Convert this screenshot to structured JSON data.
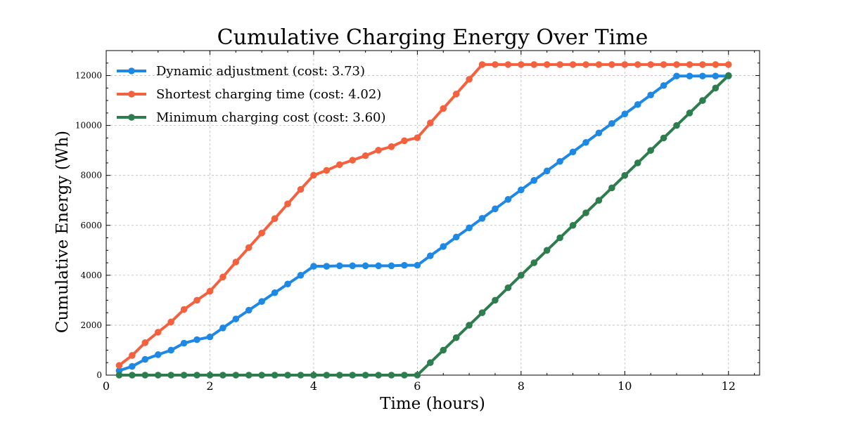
{
  "chart_data": {
    "type": "line",
    "title": "Cumulative Charging Energy Over Time",
    "xlabel": "Time (hours)",
    "ylabel": "Cumulative Energy (Wh)",
    "xlim": [
      0,
      12.6
    ],
    "ylim": [
      0,
      13000
    ],
    "xticks": [
      0,
      2,
      4,
      6,
      8,
      10,
      12
    ],
    "yticks": [
      0,
      2000,
      4000,
      6000,
      8000,
      10000,
      12000
    ],
    "grid": true,
    "legend_position": "top-left",
    "x": [
      0.25,
      0.5,
      0.75,
      1.0,
      1.25,
      1.5,
      1.75,
      2.0,
      2.25,
      2.5,
      2.75,
      3.0,
      3.25,
      3.5,
      3.75,
      4.0,
      4.25,
      4.5,
      4.75,
      5.0,
      5.25,
      5.5,
      5.75,
      6.0,
      6.25,
      6.5,
      6.75,
      7.0,
      7.25,
      7.5,
      7.75,
      8.0,
      8.25,
      8.5,
      8.75,
      9.0,
      9.25,
      9.5,
      9.75,
      10.0,
      10.25,
      10.5,
      10.75,
      11.0,
      11.25,
      11.5,
      11.75,
      12.0
    ],
    "series": [
      {
        "name": "Dynamic adjustment (cost: 3.73)",
        "color": "#1e88e5",
        "values": [
          180,
          350,
          630,
          820,
          1000,
          1280,
          1420,
          1530,
          1890,
          2250,
          2600,
          2950,
          3300,
          3650,
          4000,
          4360,
          4360,
          4380,
          4380,
          4380,
          4380,
          4380,
          4400,
          4400,
          4780,
          5150,
          5530,
          5900,
          6280,
          6660,
          7040,
          7420,
          7800,
          8180,
          8560,
          8940,
          9320,
          9700,
          10080,
          10460,
          10840,
          11220,
          11600,
          11980,
          11980,
          11980,
          11980,
          11980
        ]
      },
      {
        "name": "Shortest charging time (cost: 4.02)",
        "color": "#f4613f",
        "values": [
          390,
          790,
          1300,
          1720,
          2130,
          2630,
          3000,
          3360,
          3930,
          4530,
          5110,
          5690,
          6270,
          6860,
          7440,
          8010,
          8200,
          8430,
          8610,
          8790,
          9010,
          9150,
          9390,
          9510,
          10100,
          10680,
          11260,
          11850,
          12440,
          12440,
          12440,
          12440,
          12440,
          12440,
          12440,
          12440,
          12440,
          12440,
          12440,
          12440,
          12440,
          12440,
          12440,
          12440,
          12440,
          12440,
          12440,
          12440
        ]
      },
      {
        "name": "Minimum charging cost (cost: 3.60)",
        "color": "#2e7d4f",
        "values": [
          0,
          0,
          0,
          0,
          0,
          0,
          0,
          0,
          0,
          0,
          0,
          0,
          0,
          0,
          0,
          0,
          0,
          0,
          0,
          0,
          0,
          0,
          0,
          0,
          500,
          1000,
          1500,
          2000,
          2500,
          3000,
          3500,
          4000,
          4500,
          5000,
          5500,
          6000,
          6500,
          7000,
          7500,
          8000,
          8500,
          9000,
          9500,
          10000,
          10500,
          11000,
          11500,
          12000
        ]
      }
    ]
  }
}
